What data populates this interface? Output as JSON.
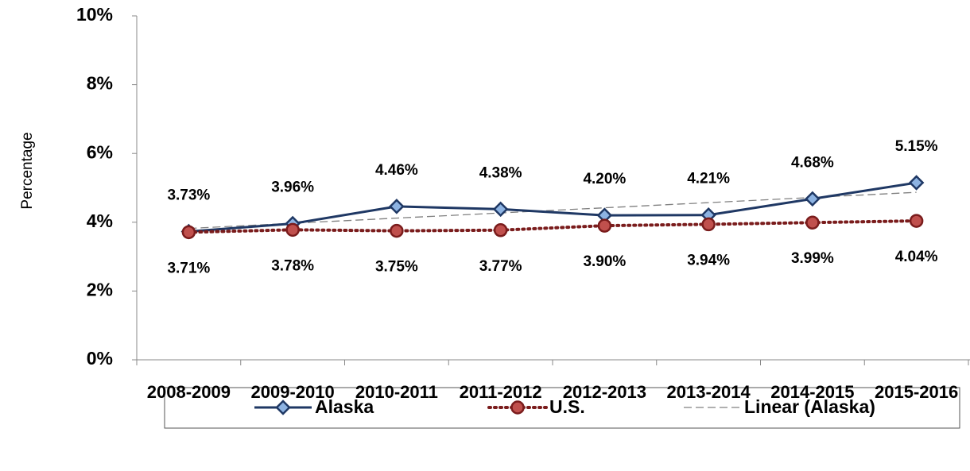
{
  "chart_data": {
    "type": "line",
    "y_label": "Percentage",
    "categories": [
      "2008-2009",
      "2009-2010",
      "2010-2011",
      "2011-2012",
      "2012-2013",
      "2013-2014",
      "2014-2015",
      "2015-2016"
    ],
    "series": [
      {
        "name": "Alaska",
        "color": "#1f3864",
        "marker_color": "#8db3e2",
        "marker": "diamond",
        "line_style": "solid",
        "label_position": "above",
        "values": [
          3.73,
          3.96,
          4.46,
          4.38,
          4.2,
          4.21,
          4.68,
          5.15
        ],
        "value_labels": [
          "3.73%",
          "3.96%",
          "4.46%",
          "4.38%",
          "4.20%",
          "4.21%",
          "4.68%",
          "5.15%"
        ]
      },
      {
        "name": "U.S.",
        "color": "#7a1c1c",
        "marker_color": "#c0504d",
        "marker": "circle",
        "line_style": "dotted",
        "label_position": "below",
        "values": [
          3.71,
          3.78,
          3.75,
          3.77,
          3.9,
          3.94,
          3.99,
          4.04
        ],
        "value_labels": [
          "3.71%",
          "3.78%",
          "3.75%",
          "3.77%",
          "3.90%",
          "3.94%",
          "3.99%",
          "4.04%"
        ]
      },
      {
        "name": "Linear (Alaska)",
        "color": "#808080",
        "marker": "none",
        "line_style": "dashed",
        "values": [
          3.82,
          3.97,
          4.12,
          4.27,
          4.42,
          4.57,
          4.72,
          4.87
        ]
      }
    ],
    "ylim": [
      0,
      10
    ],
    "yticks": [
      {
        "value": 0,
        "label": "0%"
      },
      {
        "value": 2,
        "label": "2%"
      },
      {
        "value": 4,
        "label": "4%"
      },
      {
        "value": 6,
        "label": "6%"
      },
      {
        "value": 8,
        "label": "8%"
      },
      {
        "value": 10,
        "label": "10%"
      }
    ],
    "grid": false,
    "legend": "bottom"
  }
}
